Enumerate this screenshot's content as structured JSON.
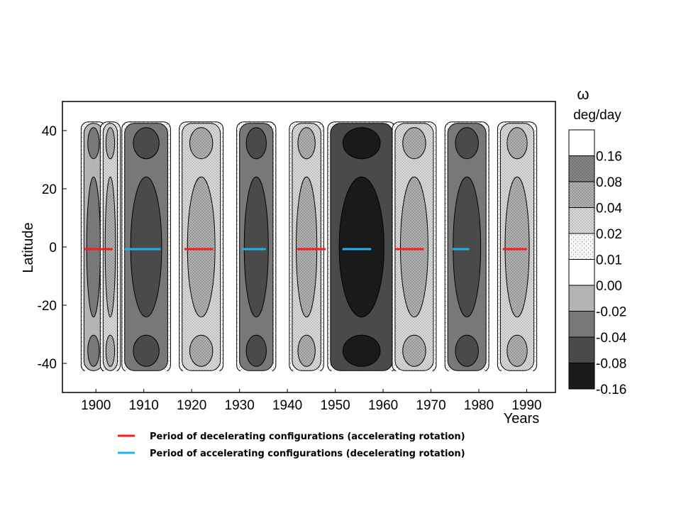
{
  "chart_data": {
    "type": "heatmap",
    "xlabel": "Years",
    "ylabel": "Latitude",
    "xlim": [
      1893,
      1996
    ],
    "ylim": [
      -50,
      50
    ],
    "x_ticks": [
      1900,
      1910,
      1920,
      1930,
      1940,
      1950,
      1960,
      1970,
      1980,
      1990
    ],
    "y_ticks": [
      40,
      20,
      0,
      -20,
      -40
    ],
    "data_extent": {
      "x": [
        1895,
        1995
      ],
      "y": [
        -43,
        43
      ]
    },
    "colorbar": {
      "title_symbol": "ω",
      "title_unit": "deg/day",
      "labels": [
        "0.16",
        "0.08",
        "0.04",
        "0.02",
        "0.01",
        "0.00",
        "-0.02",
        "-0.04",
        "-0.08",
        "-0.16"
      ],
      "levels": [
        {
          "fill": "#ffffff",
          "pattern": "none"
        },
        {
          "fill": "#7d7d7d",
          "pattern": "dense"
        },
        {
          "fill": "#a8a8a8",
          "pattern": "dots"
        },
        {
          "fill": "#cfcfcf",
          "pattern": "dots"
        },
        {
          "fill": "#f2f2f2",
          "pattern": "sparse"
        },
        {
          "fill": "#ffffff",
          "pattern": "none"
        },
        {
          "fill": "#b4b4b4",
          "pattern": "none"
        },
        {
          "fill": "#787878",
          "pattern": "none"
        },
        {
          "fill": "#4a4a4a",
          "pattern": "none"
        },
        {
          "fill": "#1a1a1a",
          "pattern": "none"
        }
      ]
    },
    "periods": [
      {
        "type": "decelerating",
        "start": 1897.5,
        "end": 1903.5
      },
      {
        "type": "accelerating",
        "start": 1906,
        "end": 1913.5
      },
      {
        "type": "decelerating",
        "start": 1918.5,
        "end": 1924.5
      },
      {
        "type": "accelerating",
        "start": 1930.5,
        "end": 1935.5
      },
      {
        "type": "decelerating",
        "start": 1942,
        "end": 1948
      },
      {
        "type": "accelerating",
        "start": 1951.5,
        "end": 1957.5
      },
      {
        "type": "decelerating",
        "start": 1962.5,
        "end": 1968.5
      },
      {
        "type": "accelerating",
        "start": 1974.5,
        "end": 1978
      },
      {
        "type": "decelerating",
        "start": 1985,
        "end": 1990
      }
    ],
    "bands": [
      {
        "center": 1899.5,
        "width": 4,
        "level": 6,
        "core": 7
      },
      {
        "center": 1903,
        "width": 3,
        "level": 3,
        "core": 2
      },
      {
        "center": 1910.5,
        "width": 9,
        "level": 7,
        "core": 8
      },
      {
        "center": 1922,
        "width": 8,
        "level": 3,
        "core": 2
      },
      {
        "center": 1933.5,
        "width": 7,
        "level": 7,
        "core": 8
      },
      {
        "center": 1944,
        "width": 6,
        "level": 3,
        "core": 2
      },
      {
        "center": 1955.5,
        "width": 13,
        "level": 8,
        "core": 9
      },
      {
        "center": 1966.5,
        "width": 8,
        "level": 3,
        "core": 2
      },
      {
        "center": 1977.5,
        "width": 8,
        "level": 7,
        "core": 8
      },
      {
        "center": 1988,
        "width": 7,
        "level": 3,
        "core": 2
      }
    ],
    "legend": [
      {
        "color": "#ff1a1a",
        "label": "Period of decelerating configurations (accelerating rotation)"
      },
      {
        "color": "#1ab4ee",
        "label": "Period of accelerating configurations (decelerating rotation)"
      }
    ]
  }
}
